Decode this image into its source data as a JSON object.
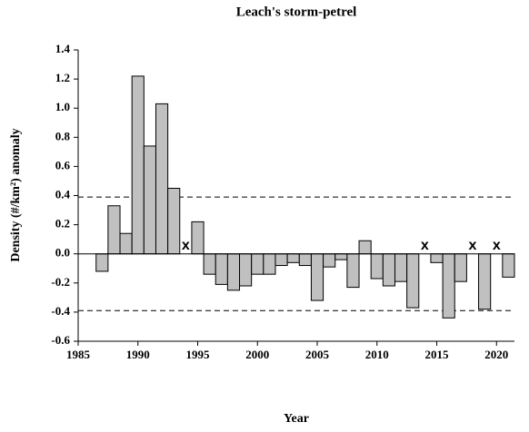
{
  "chart_data": {
    "type": "bar",
    "title": "Leach's storm-petrel",
    "x_label": "Year",
    "y_label": "Density (#/km²) anomaly",
    "x": [
      1987,
      1988,
      1989,
      1990,
      1991,
      1992,
      1993,
      1994,
      1995,
      1996,
      1997,
      1998,
      1999,
      2000,
      2001,
      2002,
      2003,
      2004,
      2005,
      2006,
      2007,
      2008,
      2009,
      2010,
      2011,
      2012,
      2013,
      2014,
      2015,
      2016,
      2017,
      2018,
      2019,
      2020,
      2021
    ],
    "values": [
      -0.12,
      0.33,
      0.14,
      1.22,
      0.74,
      1.03,
      0.45,
      null,
      0.22,
      -0.14,
      -0.21,
      -0.25,
      -0.22,
      -0.14,
      -0.14,
      -0.08,
      -0.06,
      -0.08,
      -0.32,
      -0.09,
      -0.04,
      -0.23,
      0.09,
      -0.17,
      -0.22,
      -0.19,
      -0.37,
      null,
      -0.06,
      -0.44,
      -0.19,
      null,
      -0.38,
      null,
      -0.16
    ],
    "missing_marker": "x",
    "color": "#c0c0c0",
    "reference_lines": [
      0.39,
      -0.39
    ],
    "xlim": [
      1985,
      2021.5
    ],
    "xticks": [
      1985,
      1990,
      1995,
      2000,
      2005,
      2010,
      2015,
      2020
    ],
    "ylim": [
      -0.6,
      1.4
    ],
    "yticks": [
      {
        "value": -0.6,
        "label": "-0.6"
      },
      {
        "value": -0.4,
        "label": "-0.4"
      },
      {
        "value": -0.2,
        "label": "-0.2"
      },
      {
        "value": 0,
        "label": "0.0"
      },
      {
        "value": 0.2,
        "label": "0.2"
      },
      {
        "value": 0.4,
        "label": "0.4"
      },
      {
        "value": 0.6,
        "label": "0.6"
      },
      {
        "value": 0.8,
        "label": "0.8"
      },
      {
        "value": 1,
        "label": "1.0"
      },
      {
        "value": 1.2,
        "label": "1.2"
      },
      {
        "value": 1.4,
        "label": "1.4"
      }
    ]
  }
}
